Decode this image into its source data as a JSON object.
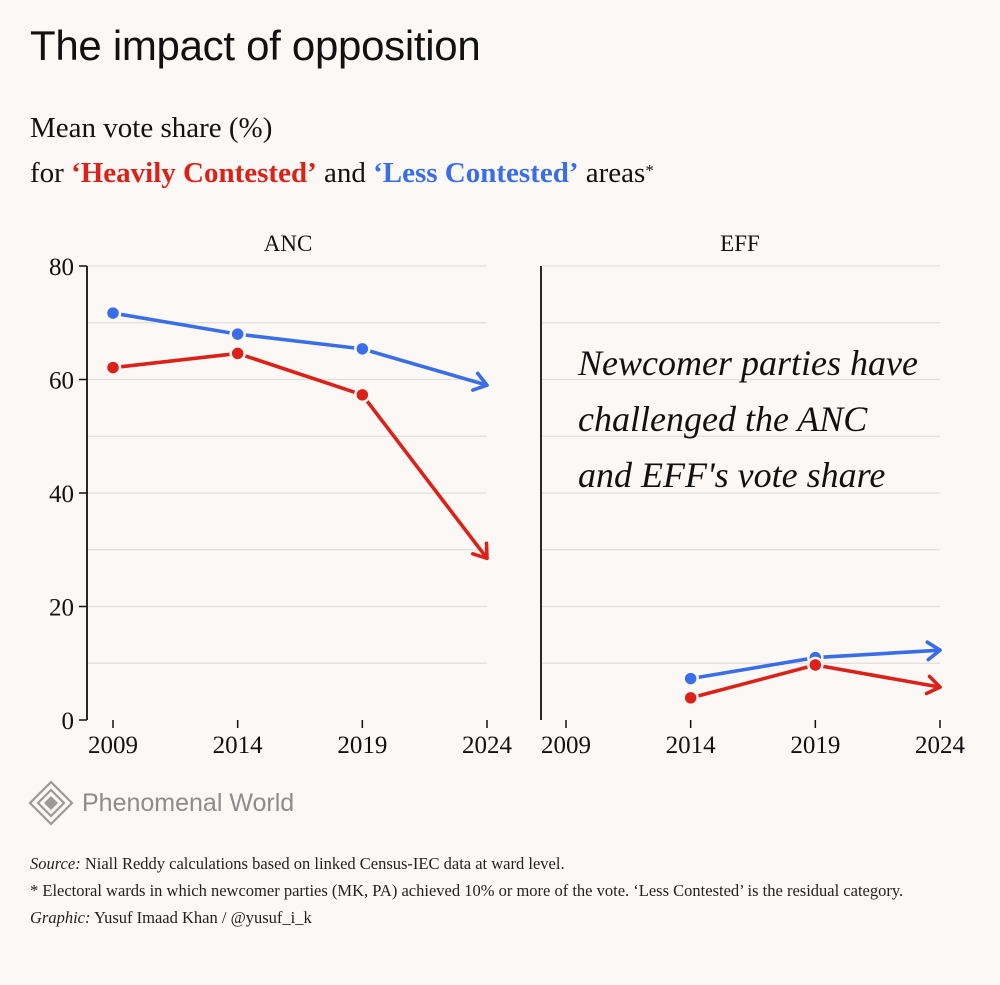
{
  "title": "The impact of opposition",
  "subtitle": {
    "line1": "Mean vote share (%)",
    "for": "for",
    "heavy": "‘Heavily Contested’",
    "and": "and",
    "less": "‘Less Contested’",
    "areas": "areas",
    "star": "*"
  },
  "colors": {
    "heavy": "#dc2218",
    "less": "#3a6ee8",
    "grid": "#e3dedb",
    "axis": "#111111",
    "background": "#fcf8f6"
  },
  "chart_data": [
    {
      "type": "line",
      "title": "ANC",
      "x": [
        2009,
        2014,
        2019,
        2024
      ],
      "ylim": [
        0,
        80
      ],
      "yticks": [
        0,
        20,
        40,
        60,
        80
      ],
      "series": [
        {
          "name": "Less Contested",
          "color": "#3a6ee8",
          "values": [
            71.7,
            68.0,
            65.4,
            59.0
          ],
          "arrow_last": true
        },
        {
          "name": "Heavily Contested",
          "color": "#dc2218",
          "values": [
            62.1,
            64.6,
            57.3,
            28.5
          ],
          "arrow_last": true
        }
      ]
    },
    {
      "type": "line",
      "title": "EFF",
      "x": [
        2009,
        2014,
        2019,
        2024
      ],
      "ylim": [
        0,
        80
      ],
      "series": [
        {
          "name": "Less Contested",
          "color": "#3a6ee8",
          "values": [
            null,
            7.3,
            11.0,
            12.3
          ],
          "arrow_last": true
        },
        {
          "name": "Heavily Contested",
          "color": "#dc2218",
          "values": [
            null,
            3.9,
            9.7,
            5.8
          ],
          "arrow_last": true
        }
      ],
      "annotation": [
        "Newcomer parties have",
        "challenged the ANC",
        "and EFF's vote share"
      ]
    }
  ],
  "logo": {
    "text": "Phenomenal World",
    "icon": "diamond-logo-icon"
  },
  "notes": {
    "source_label": "Source:",
    "source_text": "Niall Reddy calculations based on linked Census-IEC data at ward level.",
    "footnote": "* Electoral wards in which newcomer parties (MK, PA) achieved 10% or more of the vote. ‘Less Contested’ is the residual category.",
    "graphic_label": "Graphic:",
    "graphic_text": "Yusuf Imaad Khan / @yusuf_i_k"
  }
}
